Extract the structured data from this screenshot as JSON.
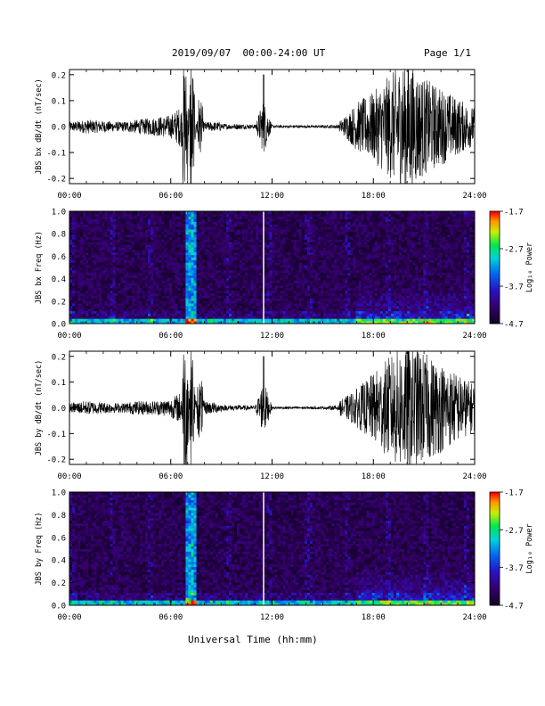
{
  "header": {
    "title": "2019/09/07  00:00-24:00 UT",
    "page": "Page 1/1"
  },
  "xlabel": "Universal Time (hh:mm)",
  "colors": {
    "line": "#000000",
    "background": "#ffffff"
  },
  "chart_data": [
    {
      "type": "line",
      "title": "",
      "ylabel": "JBS bx dB/dt (nT/sec)",
      "xlabel": "",
      "xticks": [
        "00:00",
        "06:00",
        "12:00",
        "18:00",
        "24:00"
      ],
      "yticks": [
        "0.2",
        "0.1",
        "0.0",
        "-0.1",
        "-0.2"
      ],
      "xlim": [
        0,
        24
      ],
      "ylim": [
        -0.22,
        0.22
      ],
      "series": [
        {
          "x": [
            0,
            1,
            2,
            3,
            4,
            5,
            6,
            6.6,
            7,
            7.2,
            7.6,
            8,
            9,
            10,
            11,
            11.5,
            12,
            13,
            14,
            15,
            16,
            17,
            18,
            19,
            20,
            21,
            22,
            23,
            24
          ],
          "y": [
            0.02,
            0.03,
            0.025,
            0.02,
            0.03,
            0.04,
            0.05,
            0.09,
            0.07,
            -0.12,
            0.04,
            0.02,
            0.02,
            0.02,
            0.015,
            0.2,
            0.01,
            0.01,
            0.01,
            0.01,
            0.015,
            0.05,
            0.06,
            0.08,
            0.1,
            0.07,
            0.06,
            0.05,
            0.04
          ]
        }
      ]
    },
    {
      "type": "heatmap",
      "title": "",
      "ylabel": "JBS bx Freq (Hz)",
      "xlabel": "",
      "xticks": [
        "00:00",
        "06:00",
        "12:00",
        "18:00",
        "24:00"
      ],
      "yticks": [
        "1.0",
        "0.8",
        "0.6",
        "0.4",
        "0.2",
        "0.0"
      ],
      "xlim": [
        0,
        24
      ],
      "ylim": [
        0,
        1.0
      ],
      "colorbar": {
        "label": "Log₁₀ Power",
        "ticks": [
          "-1.7",
          "-2.7",
          "-3.7",
          "-4.7"
        ],
        "range": [
          -4.7,
          -1.7
        ]
      }
    },
    {
      "type": "line",
      "title": "",
      "ylabel": "JBS by dB/dt (nT/sec)",
      "xlabel": "",
      "xticks": [
        "00:00",
        "06:00",
        "12:00",
        "18:00",
        "24:00"
      ],
      "yticks": [
        "0.2",
        "0.1",
        "0.0",
        "-0.1",
        "-0.2"
      ],
      "xlim": [
        0,
        24
      ],
      "ylim": [
        -0.22,
        0.22
      ],
      "series": [
        {
          "x": [
            0,
            1,
            2,
            3,
            4,
            5,
            6,
            6.6,
            7,
            7.2,
            7.6,
            8,
            9,
            10,
            11,
            11.5,
            12,
            13,
            14,
            15,
            16,
            17,
            18,
            19,
            20,
            21,
            22,
            23,
            24
          ],
          "y": [
            0.02,
            0.03,
            0.025,
            0.02,
            0.03,
            0.03,
            0.04,
            0.07,
            0.1,
            -0.11,
            0.04,
            0.03,
            0.02,
            0.02,
            0.015,
            0.2,
            0.01,
            0.01,
            0.01,
            0.01,
            0.02,
            0.04,
            0.06,
            0.08,
            0.1,
            0.08,
            0.07,
            0.06,
            0.05
          ]
        }
      ]
    },
    {
      "type": "heatmap",
      "title": "",
      "ylabel": "JBS by Freq (Hz)",
      "xlabel": "",
      "xticks": [
        "00:00",
        "06:00",
        "12:00",
        "18:00",
        "24:00"
      ],
      "yticks": [
        "1.0",
        "0.8",
        "0.6",
        "0.4",
        "0.2",
        "0.0"
      ],
      "xlim": [
        0,
        24
      ],
      "ylim": [
        0,
        1.0
      ],
      "colorbar": {
        "label": "Log₁₀ Power",
        "ticks": [
          "-1.7",
          "-2.7",
          "-3.7",
          "-4.7"
        ],
        "range": [
          -4.7,
          -1.7
        ]
      }
    }
  ]
}
